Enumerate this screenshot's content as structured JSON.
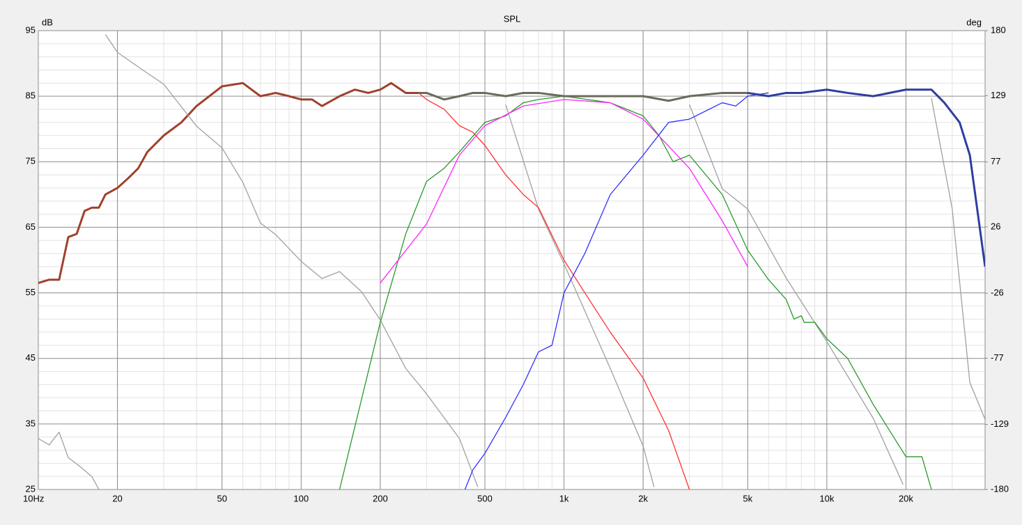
{
  "chart_data": {
    "type": "line",
    "title": "SPL",
    "ylabel": "dB",
    "y2label": "deg",
    "xscale": "log",
    "grid": true,
    "minor_grid": true,
    "xlim": [
      10,
      40000
    ],
    "ylim": [
      25,
      95
    ],
    "y2lim": [
      -180,
      180
    ],
    "xticks": [
      {
        "value": 10,
        "label": "10Hz"
      },
      20,
      50,
      100,
      200,
      500,
      {
        "value": 1000,
        "label": "1k"
      },
      {
        "value": 2000,
        "label": "2k"
      },
      {
        "value": 5000,
        "label": "5k"
      },
      {
        "value": 10000,
        "label": "10k"
      },
      {
        "value": 20000,
        "label": "20k"
      }
    ],
    "yticks": [
      25,
      35,
      45,
      55,
      65,
      75,
      85,
      95
    ],
    "y2ticks": [
      -180,
      -129,
      -77,
      -26,
      26,
      77,
      129,
      180
    ],
    "series": [
      {
        "color": "#a0402c",
        "width": 3,
        "x": [
          10,
          11,
          12,
          13,
          14,
          15,
          16,
          17,
          18,
          20,
          22,
          24,
          26,
          30,
          35,
          40,
          50,
          60,
          70,
          80,
          90,
          100,
          110,
          120,
          140,
          160,
          180,
          200,
          220,
          250,
          280
        ],
        "values": [
          56.5,
          57,
          57,
          63.5,
          64,
          67.5,
          68,
          68,
          70,
          71,
          72.5,
          74,
          76.5,
          79,
          81,
          83.5,
          86.5,
          87,
          85,
          85.5,
          85,
          84.5,
          84.5,
          83.5,
          85,
          86,
          85.5,
          86,
          87,
          85.5,
          85.5
        ]
      },
      {
        "color": "#a0a0a0",
        "width": 1.3,
        "axis": "y2",
        "x": [
          10,
          11,
          12,
          13,
          14,
          15,
          16,
          17,
          17.5,
          18,
          20,
          25,
          30,
          40,
          50,
          60,
          70,
          80,
          100,
          120,
          140,
          170,
          200,
          250,
          300,
          400,
          470,
          475,
          600,
          800,
          1000,
          1500,
          2000,
          2200,
          2250,
          3000,
          4000,
          5000,
          7000,
          10000,
          15000,
          19500,
          19700,
          25000,
          30000,
          35000,
          40000
        ],
        "values": [
          -140,
          -145,
          -135,
          -155,
          -160,
          -165,
          -170,
          -180,
          null,
          177,
          163,
          149,
          138,
          105,
          88,
          61,
          29,
          20,
          -1,
          -14.5,
          -9,
          -25,
          -47,
          -85,
          -105,
          -140,
          -178,
          null,
          122,
          40,
          -3,
          -85,
          -146,
          -178,
          null,
          122,
          56,
          40,
          -14,
          -64,
          -124,
          -176,
          null,
          127,
          40,
          -96,
          -125
        ]
      },
      {
        "color": "#ff3030",
        "width": 1.3,
        "x": [
          280,
          300,
          350,
          400,
          450,
          500,
          600,
          700,
          800,
          1000,
          1200,
          1500,
          2000,
          2500,
          3000
        ],
        "values": [
          85.5,
          84.5,
          83,
          80.5,
          79.5,
          77.5,
          73,
          70,
          68,
          60,
          55,
          49,
          42,
          34,
          25
        ]
      },
      {
        "color": "#2a9a2a",
        "width": 1.3,
        "x": [
          140,
          200,
          250,
          300,
          350,
          400,
          500,
          600,
          700,
          800,
          1000,
          1500,
          2000,
          2300,
          2600,
          3000,
          4000,
          5000,
          6000,
          7000,
          7500,
          8000,
          8200,
          9000,
          10000,
          12000,
          15000,
          20000,
          23000,
          25000
        ],
        "values": [
          25,
          50.5,
          64,
          72,
          74,
          76.5,
          81,
          82,
          84,
          84.5,
          85,
          84,
          82,
          79,
          75,
          76,
          70,
          61.5,
          57,
          54,
          51,
          51.5,
          50.5,
          50.5,
          48,
          45,
          38,
          30,
          30,
          25
        ]
      },
      {
        "color": "#ff20ff",
        "width": 1.3,
        "x": [
          200,
          300,
          400,
          500,
          700,
          1000,
          1500,
          2000,
          3000,
          4000,
          5000
        ],
        "values": [
          56.5,
          65.5,
          76,
          80.5,
          83.5,
          84.5,
          84,
          81.5,
          74,
          66,
          59
        ]
      },
      {
        "color": "#3030ff",
        "width": 1.3,
        "x": [
          420,
          450,
          500,
          600,
          700,
          800,
          900,
          1000,
          1200,
          1500,
          2000,
          2500,
          3000,
          4000,
          4500,
          5000,
          6000
        ],
        "values": [
          25,
          28,
          30.5,
          36,
          41,
          46,
          47,
          55,
          61,
          70,
          76,
          81,
          81.5,
          84,
          83.5,
          85,
          85.5
        ]
      },
      {
        "color": "#6b6b5a",
        "width": 3,
        "x": [
          280,
          300,
          350,
          400,
          450,
          500,
          600,
          700,
          800,
          1000,
          1500,
          2000,
          2500,
          3000,
          4000,
          5000
        ],
        "values": [
          85.5,
          85.5,
          84.5,
          85,
          85.5,
          85.5,
          85,
          85.5,
          85.5,
          85,
          85,
          85,
          84.3,
          85,
          85.5,
          85.5
        ]
      },
      {
        "color": "#2e3da0",
        "width": 3,
        "x": [
          5000,
          6000,
          7000,
          8000,
          10000,
          12000,
          15000,
          20000,
          22000,
          25000,
          28000,
          32000,
          35000,
          40000
        ],
        "values": [
          85.5,
          85,
          85.5,
          85.5,
          86,
          85.5,
          85,
          86,
          86,
          86,
          84,
          81,
          76,
          59
        ]
      }
    ]
  }
}
